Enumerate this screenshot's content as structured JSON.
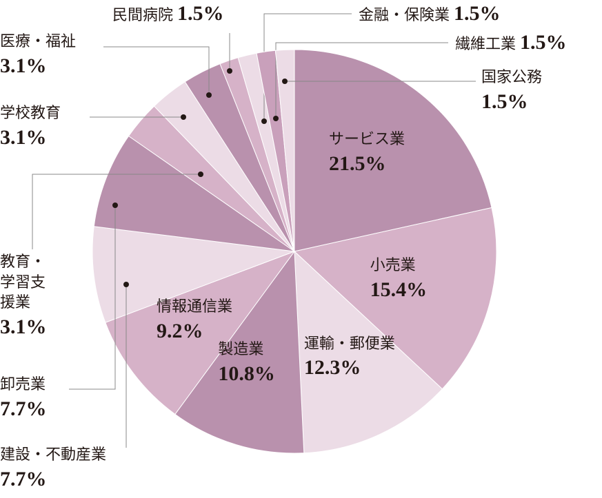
{
  "chart_data": {
    "type": "pie",
    "categories": [
      "サービス業",
      "小売業",
      "運輸・郵便業",
      "製造業",
      "情報通信業",
      "建設・不動産業",
      "卸売業",
      "教育・学習支援業",
      "学校教育",
      "医療・福祉",
      "民間病院",
      "金融・保険業",
      "繊維工業",
      "国家公務"
    ],
    "values": [
      21.5,
      15.4,
      12.3,
      10.8,
      9.2,
      7.7,
      7.7,
      3.1,
      3.1,
      3.1,
      1.5,
      1.5,
      1.5,
      1.5
    ],
    "value_labels": [
      "21.5%",
      "15.4%",
      "12.3%",
      "10.8%",
      "9.2%",
      "7.7%",
      "7.7%",
      "3.1%",
      "3.1%",
      "3.1%",
      "1.5%",
      "1.5%",
      "1.5%",
      "1.5%"
    ],
    "colors": [
      "#b991ad",
      "#d6b2c8",
      "#ecdce6",
      "#b991ad",
      "#d6b2c8",
      "#ecdce6",
      "#b991ad",
      "#d6b2c8",
      "#ecdce6",
      "#b991ad",
      "#d6b2c8",
      "#ecdce6",
      "#c9a0bb",
      "#ecdce6"
    ]
  }
}
